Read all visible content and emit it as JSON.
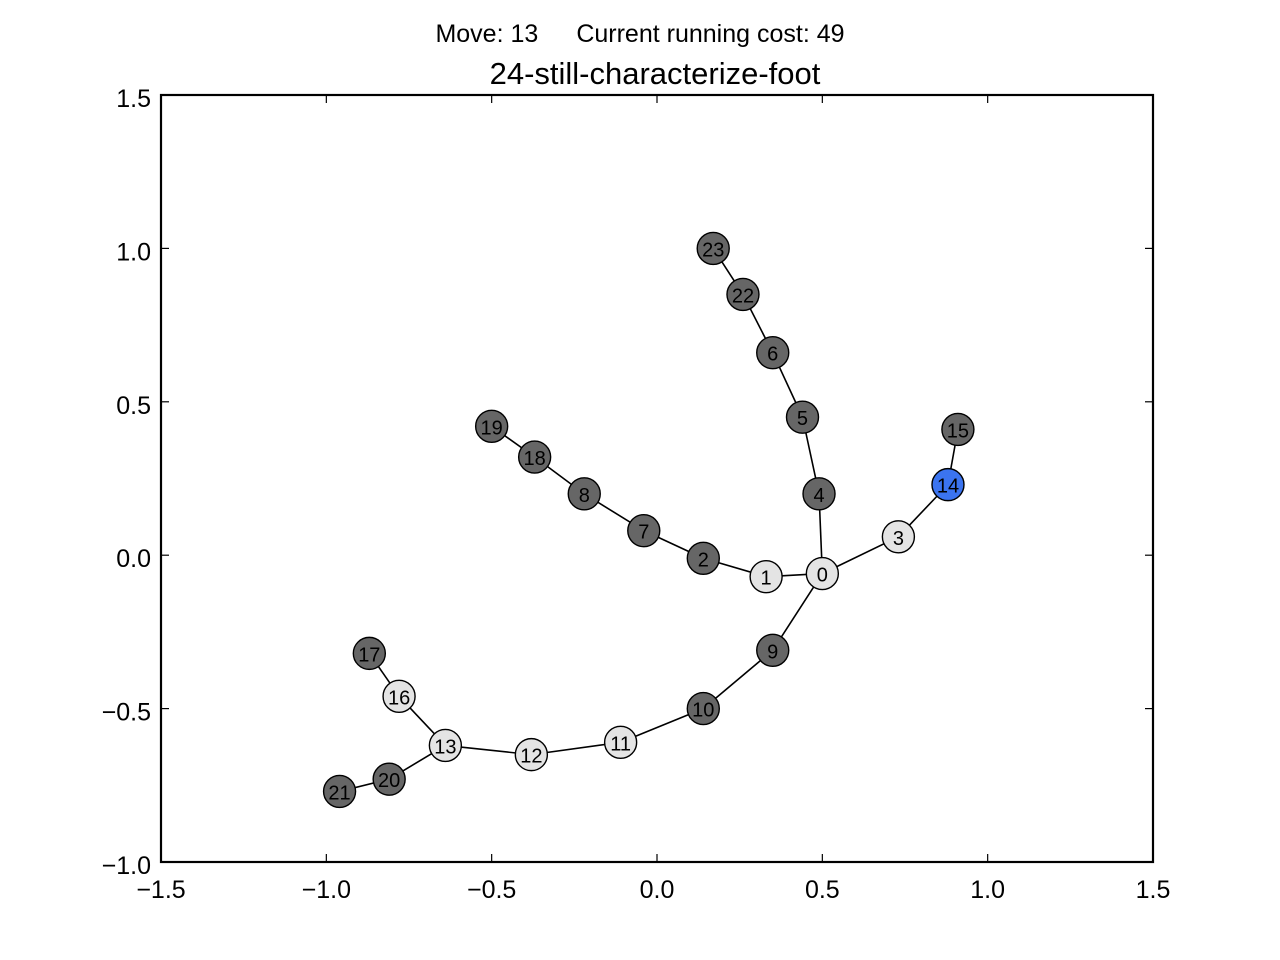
{
  "header": {
    "move_label": "Move:",
    "move_value": "13",
    "cost_label": "Current running cost:",
    "cost_value": "49"
  },
  "colors": {
    "visited": "#e4e4e4",
    "unvisited": "#666666",
    "current": "#3b74f0",
    "edge": "#000000"
  },
  "chart_data": {
    "type": "scatter",
    "title": "24-still-characterize-foot",
    "xlabel": "",
    "ylabel": "",
    "xlim": [
      -1.5,
      1.5
    ],
    "ylim": [
      -1.0,
      1.5
    ],
    "x_ticks": [
      -1.5,
      -1.0,
      -0.5,
      0.0,
      0.5,
      1.0,
      1.5
    ],
    "x_tick_labels": [
      "−1.5",
      "−1.0",
      "−0.5",
      "0.0",
      "0.5",
      "1.0",
      "1.5"
    ],
    "y_ticks": [
      1.5,
      1.0,
      0.5,
      0.0,
      -0.5,
      -1.0
    ],
    "y_tick_labels": [
      "1.5",
      "1.0",
      "0.5",
      "0.0",
      "−0.5",
      "−1.0"
    ],
    "grid": false,
    "nodes": [
      {
        "id": "0",
        "x": 0.5,
        "y": -0.06,
        "state": "visited"
      },
      {
        "id": "1",
        "x": 0.33,
        "y": -0.07,
        "state": "visited"
      },
      {
        "id": "2",
        "x": 0.14,
        "y": -0.01,
        "state": "unvisited"
      },
      {
        "id": "3",
        "x": 0.73,
        "y": 0.06,
        "state": "visited"
      },
      {
        "id": "4",
        "x": 0.49,
        "y": 0.2,
        "state": "unvisited"
      },
      {
        "id": "5",
        "x": 0.44,
        "y": 0.45,
        "state": "unvisited"
      },
      {
        "id": "6",
        "x": 0.35,
        "y": 0.66,
        "state": "unvisited"
      },
      {
        "id": "7",
        "x": -0.04,
        "y": 0.08,
        "state": "unvisited"
      },
      {
        "id": "8",
        "x": -0.22,
        "y": 0.2,
        "state": "unvisited"
      },
      {
        "id": "9",
        "x": 0.35,
        "y": -0.31,
        "state": "unvisited"
      },
      {
        "id": "10",
        "x": 0.14,
        "y": -0.5,
        "state": "unvisited"
      },
      {
        "id": "11",
        "x": -0.11,
        "y": -0.61,
        "state": "visited"
      },
      {
        "id": "12",
        "x": -0.38,
        "y": -0.65,
        "state": "visited"
      },
      {
        "id": "13",
        "x": -0.64,
        "y": -0.62,
        "state": "visited"
      },
      {
        "id": "14",
        "x": 0.88,
        "y": 0.23,
        "state": "current"
      },
      {
        "id": "15",
        "x": 0.91,
        "y": 0.41,
        "state": "unvisited"
      },
      {
        "id": "16",
        "x": -0.78,
        "y": -0.46,
        "state": "visited"
      },
      {
        "id": "17",
        "x": -0.87,
        "y": -0.32,
        "state": "unvisited"
      },
      {
        "id": "18",
        "x": -0.37,
        "y": 0.32,
        "state": "unvisited"
      },
      {
        "id": "19",
        "x": -0.5,
        "y": 0.42,
        "state": "unvisited"
      },
      {
        "id": "20",
        "x": -0.81,
        "y": -0.73,
        "state": "unvisited"
      },
      {
        "id": "21",
        "x": -0.96,
        "y": -0.77,
        "state": "unvisited"
      },
      {
        "id": "22",
        "x": 0.26,
        "y": 0.85,
        "state": "unvisited"
      },
      {
        "id": "23",
        "x": 0.17,
        "y": 1.0,
        "state": "unvisited"
      }
    ],
    "edges": [
      [
        "0",
        "1"
      ],
      [
        "1",
        "2"
      ],
      [
        "2",
        "7"
      ],
      [
        "7",
        "8"
      ],
      [
        "8",
        "18"
      ],
      [
        "18",
        "19"
      ],
      [
        "0",
        "4"
      ],
      [
        "4",
        "5"
      ],
      [
        "5",
        "6"
      ],
      [
        "6",
        "22"
      ],
      [
        "22",
        "23"
      ],
      [
        "0",
        "3"
      ],
      [
        "3",
        "14"
      ],
      [
        "14",
        "15"
      ],
      [
        "0",
        "9"
      ],
      [
        "9",
        "10"
      ],
      [
        "10",
        "11"
      ],
      [
        "11",
        "12"
      ],
      [
        "12",
        "13"
      ],
      [
        "13",
        "16"
      ],
      [
        "16",
        "17"
      ],
      [
        "13",
        "20"
      ],
      [
        "20",
        "21"
      ]
    ]
  }
}
